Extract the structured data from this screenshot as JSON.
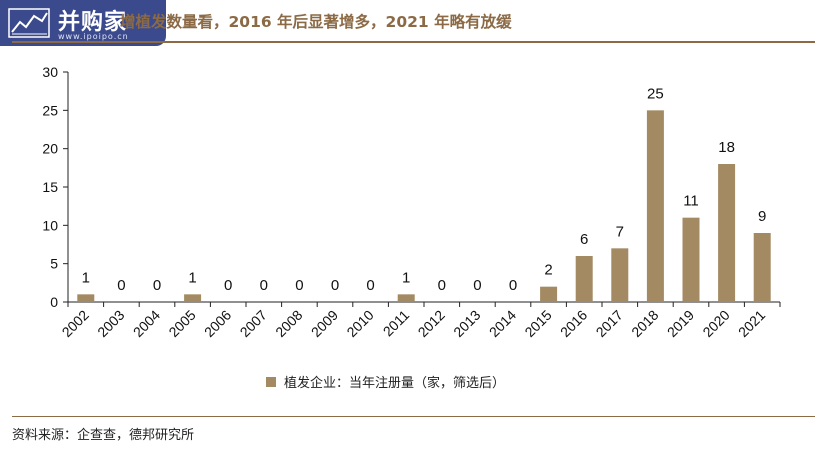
{
  "header": {
    "logo_text": "并购家",
    "logo_url": "www.ipoipo.cn",
    "title": "增植发数量看，2016 年后显著增多，2021 年略有放缓"
  },
  "footer": {
    "source": "资料来源：企查查，德邦研究所"
  },
  "colors": {
    "bar": "#a48a63",
    "accent": "#8b6a45",
    "logo_bg": "#3b4a8c"
  },
  "chart_data": {
    "type": "bar",
    "categories": [
      "2002",
      "2003",
      "2004",
      "2005",
      "2006",
      "2007",
      "2008",
      "2009",
      "2010",
      "2011",
      "2012",
      "2013",
      "2014",
      "2015",
      "2016",
      "2017",
      "2018",
      "2019",
      "2020",
      "2021"
    ],
    "series": [
      {
        "name": "植发企业：当年注册量（家，筛选后）",
        "values": [
          1,
          0,
          0,
          1,
          0,
          0,
          0,
          0,
          0,
          1,
          0,
          0,
          0,
          2,
          6,
          7,
          25,
          11,
          18,
          9
        ]
      }
    ],
    "ylim": [
      0,
      30
    ],
    "yticks": [
      0,
      5,
      10,
      15,
      20,
      25,
      30
    ],
    "grid": false,
    "legend_position": "bottom",
    "xlabel": "",
    "ylabel": ""
  }
}
